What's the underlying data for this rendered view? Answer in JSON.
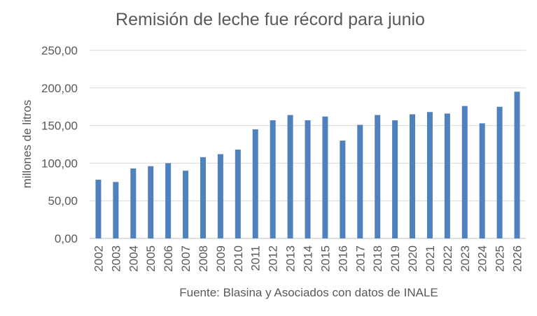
{
  "chart_data": {
    "type": "bar",
    "title": "Remisión de leche fue récord para junio",
    "ylabel": "millones de litros",
    "xlabel": "",
    "source": "Fuente: Blasina y Asociados con datos de INALE",
    "categories": [
      "2002",
      "2003",
      "2004",
      "2005",
      "2006",
      "2007",
      "2008",
      "2009",
      "2010",
      "2011",
      "2012",
      "2013",
      "2014",
      "2015",
      "2016",
      "2017",
      "2018",
      "2019",
      "2020",
      "2021",
      "2022",
      "2023",
      "2024",
      "2025",
      "2026"
    ],
    "series": [
      {
        "values": [
          78,
          75,
          93,
          96,
          100,
          90,
          108,
          112,
          118,
          145,
          157,
          164,
          157,
          162,
          130,
          151,
          164,
          157,
          165,
          168,
          166,
          176,
          153,
          175,
          195
        ]
      }
    ],
    "yticks": [
      "0,00",
      "50,00",
      "100,00",
      "150,00",
      "200,00",
      "250,00"
    ],
    "ylim": [
      0,
      250
    ],
    "grid": true,
    "legend": "none",
    "bar_color": "#4f81bd"
  }
}
